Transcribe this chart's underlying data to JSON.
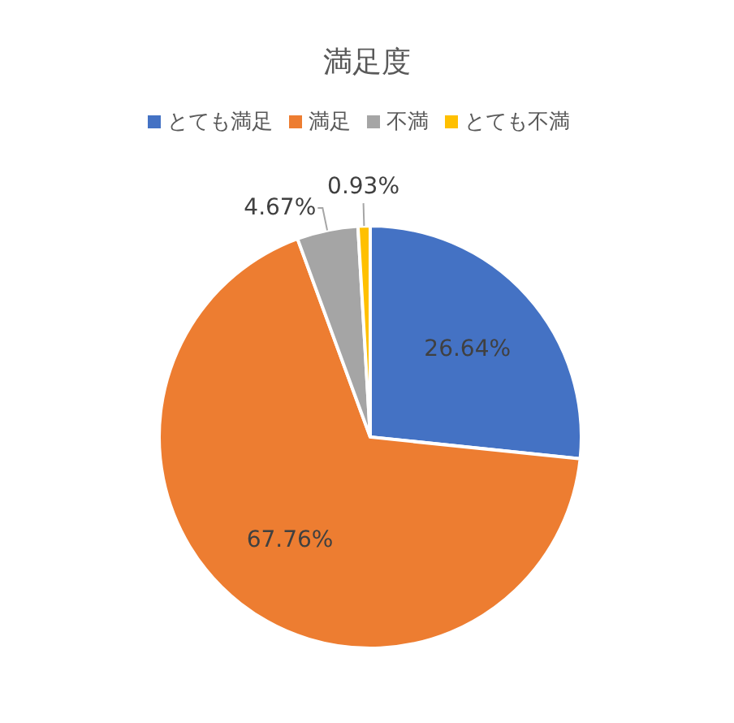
{
  "chart_data": {
    "type": "pie",
    "title": "満足度",
    "categories": [
      "とても満足",
      "満足",
      "不満",
      "とても不満"
    ],
    "values": [
      26.64,
      67.76,
      4.67,
      0.93
    ],
    "colors": [
      "#4472c4",
      "#ed7d31",
      "#a5a5a5",
      "#ffc000"
    ],
    "value_labels": [
      "26.64%",
      "67.76%",
      "4.67%",
      "0.93%"
    ],
    "legend": "top"
  }
}
